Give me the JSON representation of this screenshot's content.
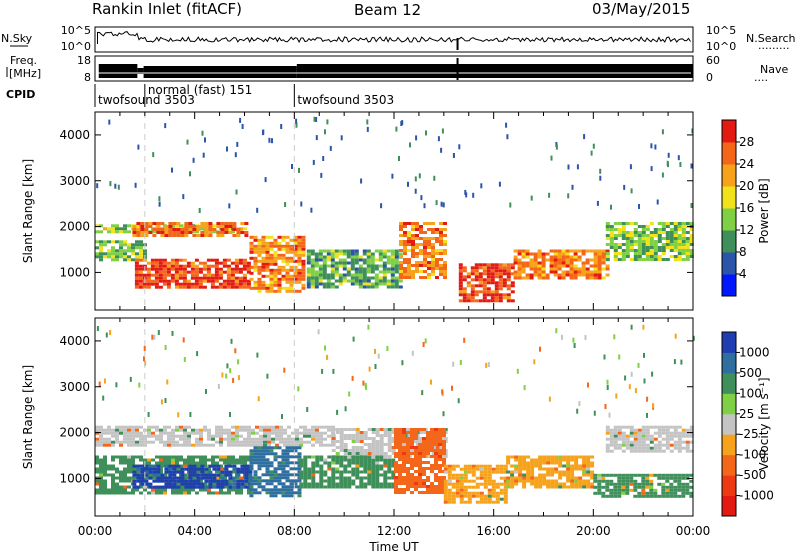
{
  "header": {
    "station": "Rankin Inlet (fitACF)",
    "beam": "Beam 12",
    "date": "03/May/2015"
  },
  "top_panels": {
    "nsky_label": "N.Sky",
    "nsky_ticks": [
      "10^5",
      "10^0"
    ],
    "nsearch_label": "N.Search",
    "nsearch_ticks": [
      "10^5",
      "10^0"
    ],
    "freq_label_line1": "Freq.",
    "freq_label_line2": "[MHz]",
    "freq_ticks": [
      "18",
      "8"
    ],
    "nave_label": "Nave",
    "nave_ticks": [
      "60",
      "0"
    ],
    "cpid_label": "CPID",
    "cpid_entries": [
      {
        "text": "twofsound 3503",
        "start_hour": 0
      },
      {
        "text": "normal (fast) 151",
        "start_hour": 2
      },
      {
        "text": "twofsound 3503",
        "start_hour": 8
      }
    ]
  },
  "power_colorbar": {
    "label": "Power [dB]",
    "ticks": [
      "28",
      "24",
      "20",
      "16",
      "12",
      "8",
      "4"
    ],
    "colors": [
      "#0018ff",
      "#2a55a8",
      "#3f8f5a",
      "#7fd045",
      "#f1e21c",
      "#f7a21b",
      "#f4661a",
      "#e31a12"
    ]
  },
  "velocity_colorbar": {
    "label": "Velocity [m s⁻¹]",
    "ticks": [
      "1000",
      "500",
      "100",
      "25",
      "-25",
      "-100",
      "-500",
      "-1000"
    ],
    "colors": [
      "#1f3fb0",
      "#2f6fa0",
      "#3f8f5a",
      "#7fd045",
      "#c4c4c4",
      "#f7a21b",
      "#f4661a",
      "#ee3a12",
      "#e31a12"
    ]
  },
  "chart_data": [
    {
      "type": "heatmap",
      "title": "",
      "xlabel": "",
      "ylabel": "Slant Range [km]",
      "xlim": [
        0,
        24
      ],
      "ylim": [
        180,
        4500
      ],
      "yticks": [
        "4000",
        "3000",
        "2000",
        "1000"
      ],
      "xticks": [],
      "quantity": "Power (dB)",
      "bands": [
        {
          "start_hour": 0.0,
          "end_hour": 6.1,
          "range_low": 1900,
          "range_high": 2050,
          "value": 16
        },
        {
          "start_hour": 1.5,
          "end_hour": 6.1,
          "range_low": 1800,
          "range_high": 2100,
          "value": 26
        },
        {
          "start_hour": 0.0,
          "end_hour": 2.0,
          "range_low": 1300,
          "range_high": 1700,
          "value": 14
        },
        {
          "start_hour": 1.6,
          "end_hour": 6.1,
          "range_low": 700,
          "range_high": 1300,
          "value": 28
        },
        {
          "start_hour": 6.2,
          "end_hour": 8.3,
          "range_low": 600,
          "range_high": 1800,
          "value": 24
        },
        {
          "start_hour": 8.5,
          "end_hour": 12.2,
          "range_low": 700,
          "range_high": 1500,
          "value": 12
        },
        {
          "start_hour": 12.2,
          "end_hour": 14.0,
          "range_low": 900,
          "range_high": 2100,
          "value": 24
        },
        {
          "start_hour": 14.6,
          "end_hour": 16.8,
          "range_low": 400,
          "range_high": 1200,
          "value": 28
        },
        {
          "start_hour": 16.8,
          "end_hour": 20.5,
          "range_low": 900,
          "range_high": 1500,
          "value": 24
        },
        {
          "start_hour": 20.5,
          "end_hour": 24.0,
          "range_low": 1300,
          "range_high": 2100,
          "value": 14
        }
      ]
    },
    {
      "type": "heatmap",
      "title": "",
      "xlabel": "Time UT",
      "ylabel": "Slant Range [km]",
      "xlim": [
        0,
        24
      ],
      "ylim": [
        180,
        4500
      ],
      "yticks": [
        "4000",
        "3000",
        "2000",
        "1000"
      ],
      "xticks": [
        "00:00",
        "04:00",
        "08:00",
        "12:00",
        "16:00",
        "20:00",
        "00:00"
      ],
      "quantity": "Velocity (m/s)",
      "bands": [
        {
          "start_hour": 0.0,
          "end_hour": 9.5,
          "range_low": 1750,
          "range_high": 2150,
          "value": 0
        },
        {
          "start_hour": 9.5,
          "end_hour": 14.0,
          "range_low": 1500,
          "range_high": 2100,
          "value": 0
        },
        {
          "start_hour": 20.5,
          "end_hour": 24.0,
          "range_low": 1600,
          "range_high": 2150,
          "value": 0
        },
        {
          "start_hour": 0.0,
          "end_hour": 6.2,
          "range_low": 700,
          "range_high": 1500,
          "value": 100
        },
        {
          "start_hour": 1.5,
          "end_hour": 6.2,
          "range_low": 800,
          "range_high": 1300,
          "value": 1000
        },
        {
          "start_hour": 6.2,
          "end_hour": 8.2,
          "range_low": 600,
          "range_high": 1700,
          "value": 500
        },
        {
          "start_hour": 8.2,
          "end_hour": 12.0,
          "range_low": 800,
          "range_high": 1500,
          "value": 100
        },
        {
          "start_hour": 12.0,
          "end_hour": 14.0,
          "range_low": 700,
          "range_high": 2100,
          "value": -500
        },
        {
          "start_hour": 14.0,
          "end_hour": 16.5,
          "range_low": 500,
          "range_high": 1300,
          "value": -100
        },
        {
          "start_hour": 16.5,
          "end_hour": 20.0,
          "range_low": 800,
          "range_high": 1500,
          "value": -100
        },
        {
          "start_hour": 20.0,
          "end_hour": 24.0,
          "range_low": 600,
          "range_high": 1100,
          "value": 100
        }
      ]
    }
  ]
}
